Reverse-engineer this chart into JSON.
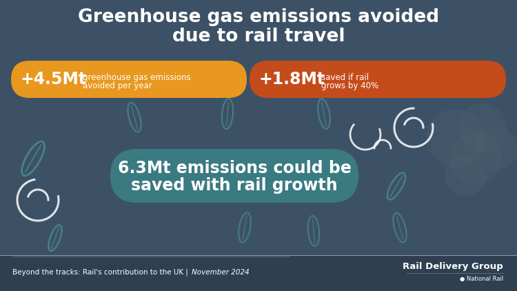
{
  "bg_color": "#3d5166",
  "footer_bg_color": "#2e3f52",
  "title_line1": "Greenhouse gas emissions avoided",
  "title_line2": "due to rail travel",
  "title_color": "#ffffff",
  "title_fontsize": 19,
  "bar1_color": "#e8981e",
  "bar1_value": "+4.5Mt",
  "bar1_desc1": "greenhouse gas emissions",
  "bar1_desc2": "avoided per year",
  "bar2_color": "#c44c1a",
  "bar2_value": "+1.8Mt",
  "bar2_desc1": "saved if rail",
  "bar2_desc2": "grows by 40%",
  "pill_color": "#3a7f85",
  "pill_text_line1": "6.3Mt emissions could be",
  "pill_text_line2": "saved with rail growth",
  "pill_text_color": "#ffffff",
  "pill_fontsize": 17,
  "footer_left1": "Beyond the tracks: Rail's contribution to the UK",
  "footer_left2": " | ",
  "footer_left3": "November 2024",
  "footer_right1": "Rail Delivery Group",
  "footer_right2": "● National Rail",
  "footer_color": "#ffffff",
  "deco_teal": "#4a8f8f",
  "deco_white": "#ffffff",
  "deco_gray": "#4e6070"
}
